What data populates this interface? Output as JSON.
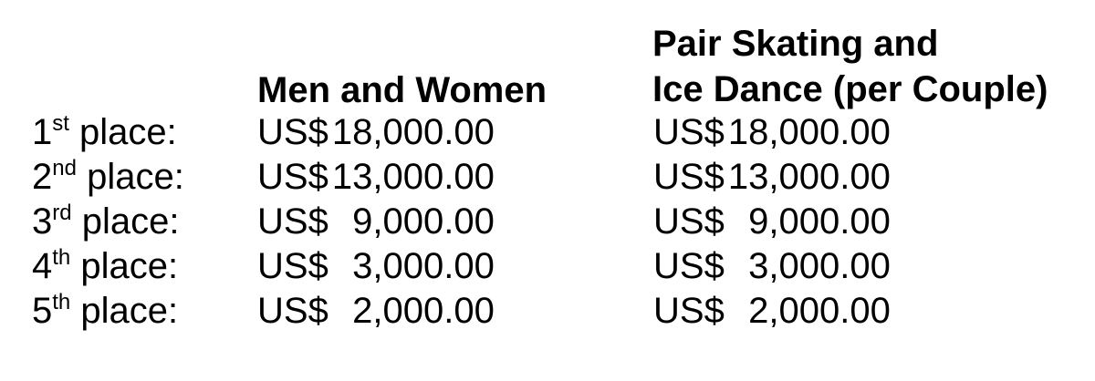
{
  "headers": {
    "men_women": "Men and Women",
    "pairs_line1": "Pair Skating and",
    "pairs_line2": "Ice Dance (per Couple)"
  },
  "rows": [
    {
      "num": "1",
      "suffix": "st",
      "label": " place:",
      "men_women": {
        "currency": "US$",
        "amount": "18,000.00"
      },
      "pairs": {
        "currency": "US$",
        "amount": "18,000.00"
      }
    },
    {
      "num": "2",
      "suffix": "nd",
      "label": " place:",
      "men_women": {
        "currency": "US$",
        "amount": "13,000.00"
      },
      "pairs": {
        "currency": "US$",
        "amount": "13,000.00"
      }
    },
    {
      "num": "3",
      "suffix": "rd",
      "label": " place:",
      "men_women": {
        "currency": "US$",
        "amount": "9,000.00"
      },
      "pairs": {
        "currency": "US$",
        "amount": "9,000.00"
      }
    },
    {
      "num": "4",
      "suffix": "th",
      "label": " place:",
      "men_women": {
        "currency": "US$",
        "amount": "3,000.00"
      },
      "pairs": {
        "currency": "US$",
        "amount": "3,000.00"
      }
    },
    {
      "num": "5",
      "suffix": "th",
      "label": " place:",
      "men_women": {
        "currency": "US$",
        "amount": "2,000.00"
      },
      "pairs": {
        "currency": "US$",
        "amount": "2,000.00"
      }
    }
  ]
}
